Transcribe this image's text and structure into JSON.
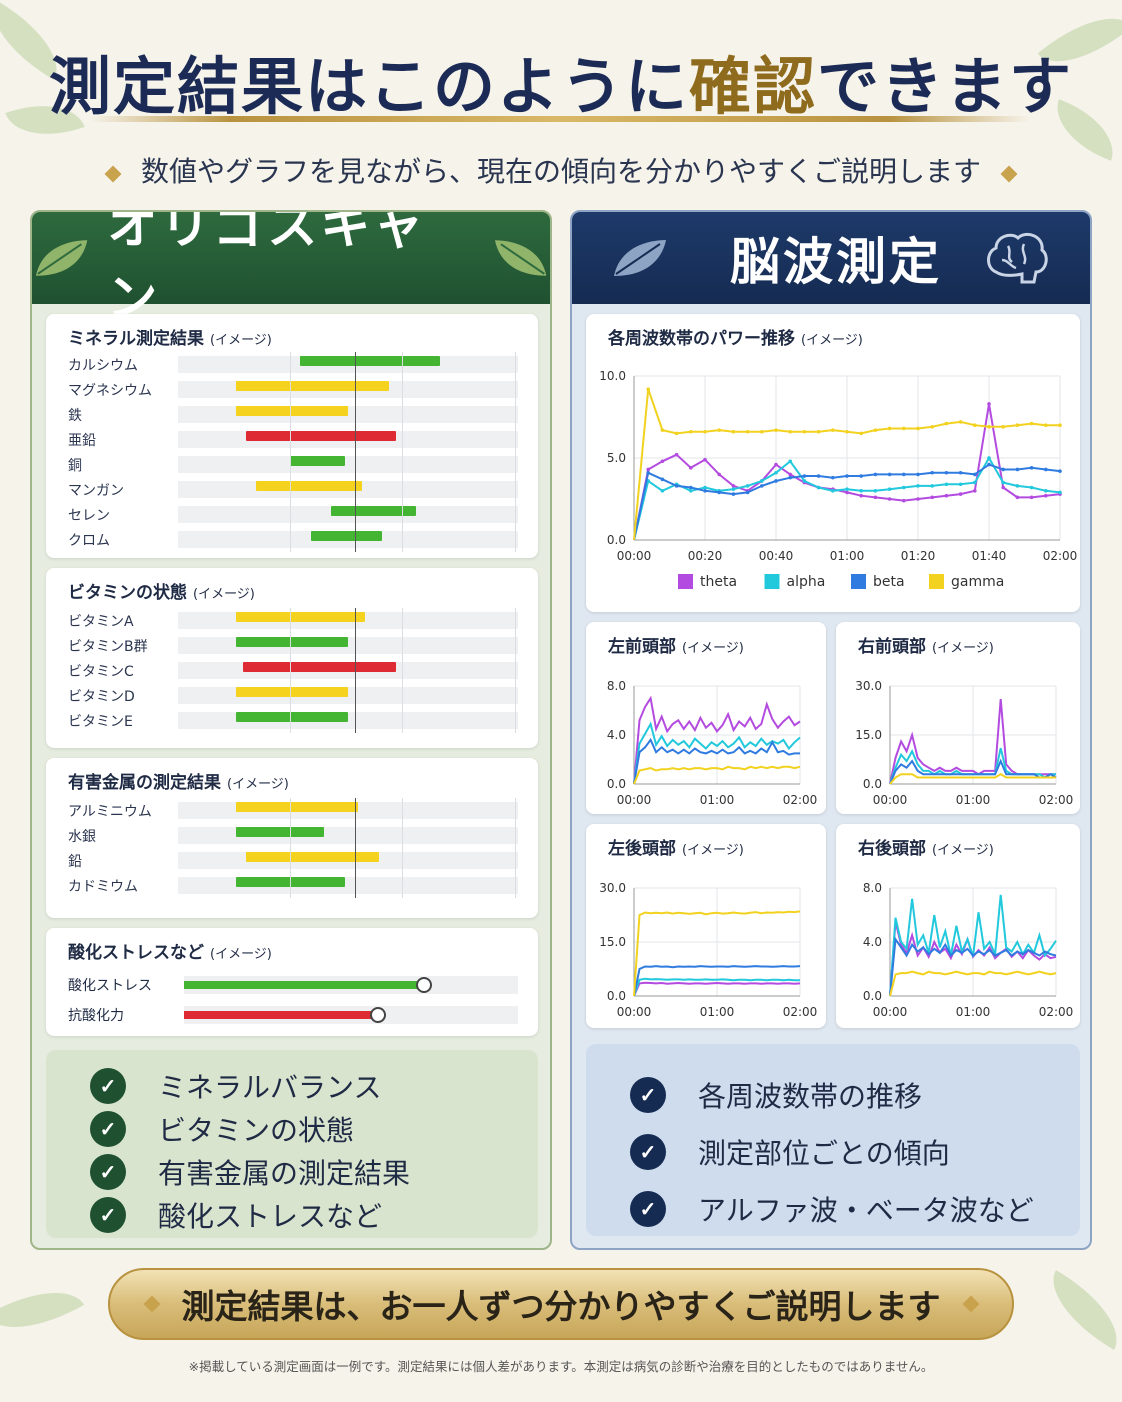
{
  "header": {
    "title_a": "測定結果はこのように",
    "title_hl": "確認",
    "title_b": "できます",
    "subtitle": "数値やグラフを見ながら、現在の傾向を分かりやすくご説明します"
  },
  "colors": {
    "green": "#44b533",
    "yellow": "#f4d21d",
    "red": "#dd2a33",
    "theta": "#b44be0",
    "alpha": "#22c8dc",
    "beta": "#2f7be0",
    "gamma": "#f2d21e"
  },
  "left_panel": {
    "title": "オリゴスキャン",
    "icon": "leaf-icon",
    "minerals": {
      "title": "ミネラル測定結果",
      "suffix": "(イメージ)",
      "items": [
        {
          "label": "カルシウム",
          "start": 0.36,
          "end": 0.77,
          "color": "green"
        },
        {
          "label": "マグネシウム",
          "start": 0.17,
          "end": 0.62,
          "color": "yellow"
        },
        {
          "label": "鉄",
          "start": 0.17,
          "end": 0.5,
          "color": "yellow"
        },
        {
          "label": "亜鉛",
          "start": 0.2,
          "end": 0.64,
          "color": "red"
        },
        {
          "label": "銅",
          "start": 0.33,
          "end": 0.49,
          "color": "green"
        },
        {
          "label": "マンガン",
          "start": 0.23,
          "end": 0.54,
          "color": "yellow"
        },
        {
          "label": "セレン",
          "start": 0.45,
          "end": 0.7,
          "color": "green"
        },
        {
          "label": "クロム",
          "start": 0.39,
          "end": 0.6,
          "color": "green"
        }
      ]
    },
    "vitamins": {
      "title": "ビタミンの状態",
      "suffix": "(イメージ)",
      "items": [
        {
          "label": "ビタミンA",
          "start": 0.17,
          "end": 0.55,
          "color": "yellow"
        },
        {
          "label": "ビタミンB群",
          "start": 0.17,
          "end": 0.5,
          "color": "green"
        },
        {
          "label": "ビタミンC",
          "start": 0.19,
          "end": 0.64,
          "color": "red"
        },
        {
          "label": "ビタミンD",
          "start": 0.17,
          "end": 0.5,
          "color": "yellow"
        },
        {
          "label": "ビタミンE",
          "start": 0.17,
          "end": 0.5,
          "color": "green"
        }
      ]
    },
    "metals": {
      "title": "有害金属の測定結果",
      "suffix": "(イメージ)",
      "items": [
        {
          "label": "アルミニウム",
          "start": 0.17,
          "end": 0.53,
          "color": "yellow"
        },
        {
          "label": "水銀",
          "start": 0.17,
          "end": 0.43,
          "color": "green"
        },
        {
          "label": "鉛",
          "start": 0.2,
          "end": 0.59,
          "color": "yellow"
        },
        {
          "label": "カドミウム",
          "start": 0.17,
          "end": 0.49,
          "color": "green"
        }
      ]
    },
    "stress": {
      "title": "酸化ストレスなど",
      "suffix": "(イメージ)",
      "items": [
        {
          "label": "酸化ストレス",
          "value": 0.72,
          "color": "green"
        },
        {
          "label": "抗酸化力",
          "value": 0.58,
          "color": "red"
        }
      ]
    },
    "checks": [
      "ミネラルバランス",
      "ビタミンの状態",
      "有害金属の測定結果",
      "酸化ストレスなど"
    ]
  },
  "right_panel": {
    "title": "脳波測定",
    "icon": "brain-icon",
    "checks": [
      "各周波数帯の推移",
      "測定部位ごとの傾向",
      "アルファ波・ベータ波など"
    ]
  },
  "chart_data": [
    {
      "type": "line",
      "title": "各周波数帯のパワー推移",
      "suffix": "(イメージ)",
      "x": [
        "00:00",
        "00:04",
        "00:08",
        "00:12",
        "00:16",
        "00:20",
        "00:24",
        "00:28",
        "00:32",
        "00:36",
        "00:40",
        "00:44",
        "00:48",
        "00:52",
        "00:56",
        "01:00",
        "01:04",
        "01:08",
        "01:12",
        "01:16",
        "01:20",
        "01:24",
        "01:28",
        "01:32",
        "01:36",
        "01:40",
        "01:44",
        "01:48",
        "01:52",
        "01:56",
        "02:00"
      ],
      "xticks": [
        "00:00",
        "00:20",
        "00:40",
        "01:00",
        "01:20",
        "01:40",
        "02:00"
      ],
      "yticks": [
        "0.0",
        "5.0",
        "10.0"
      ],
      "ylim": [
        0,
        10
      ],
      "legend": [
        "theta",
        "alpha",
        "beta",
        "gamma"
      ],
      "series": [
        {
          "name": "theta",
          "values": [
            0,
            4.3,
            4.8,
            5.2,
            4.4,
            4.9,
            4.0,
            3.3,
            3.0,
            3.6,
            4.6,
            4.0,
            3.5,
            3.2,
            3.1,
            2.9,
            2.7,
            2.6,
            2.5,
            2.4,
            2.5,
            2.6,
            2.7,
            2.8,
            3.0,
            8.3,
            3.2,
            2.6,
            2.6,
            2.7,
            2.8
          ]
        },
        {
          "name": "alpha",
          "values": [
            0,
            3.6,
            3.0,
            3.4,
            3.0,
            3.2,
            3.0,
            3.1,
            3.3,
            3.6,
            4.1,
            4.8,
            3.6,
            3.2,
            3.0,
            3.1,
            3.0,
            3.0,
            3.1,
            3.2,
            3.3,
            3.3,
            3.4,
            3.4,
            3.5,
            5.0,
            3.5,
            3.3,
            3.2,
            3.0,
            2.9
          ]
        },
        {
          "name": "beta",
          "values": [
            0,
            4.1,
            3.7,
            3.3,
            3.2,
            3.0,
            2.9,
            2.8,
            2.9,
            3.3,
            3.6,
            3.8,
            3.9,
            3.9,
            3.8,
            3.9,
            3.9,
            4.0,
            4.0,
            4.0,
            4.0,
            4.1,
            4.1,
            4.1,
            4.0,
            4.6,
            4.3,
            4.3,
            4.4,
            4.3,
            4.2
          ]
        },
        {
          "name": "gamma",
          "values": [
            0,
            9.2,
            6.7,
            6.5,
            6.6,
            6.6,
            6.7,
            6.6,
            6.6,
            6.6,
            6.7,
            6.6,
            6.6,
            6.6,
            6.7,
            6.6,
            6.5,
            6.7,
            6.8,
            6.8,
            6.8,
            6.9,
            7.1,
            7.2,
            7.0,
            6.9,
            6.9,
            7.0,
            7.1,
            7.0,
            7.0
          ]
        }
      ]
    },
    {
      "type": "line",
      "title": "左前頭部",
      "suffix": "(イメージ)",
      "xticks": [
        "00:00",
        "01:00",
        "02:00"
      ],
      "yticks": [
        "0.0",
        "4.0",
        "8.0"
      ],
      "ylim": [
        0,
        8
      ],
      "series": [
        {
          "name": "theta",
          "values": [
            0,
            5.2,
            6.3,
            7.0,
            4.5,
            5.5,
            4.3,
            4.9,
            5.2,
            4.5,
            5.1,
            4.4,
            5.4,
            4.6,
            5.0,
            4.3,
            4.8,
            5.7,
            4.4,
            5.1,
            4.7,
            5.4,
            4.5,
            4.9,
            6.5,
            5.3,
            4.6,
            5.1,
            5.5,
            4.8,
            5.1
          ]
        },
        {
          "name": "alpha",
          "values": [
            0,
            3.3,
            4.1,
            4.9,
            3.2,
            3.9,
            3.1,
            3.6,
            3.2,
            3.5,
            3.0,
            3.7,
            3.3,
            2.9,
            3.4,
            3.1,
            3.5,
            3.0,
            3.3,
            3.8,
            3.0,
            3.4,
            3.1,
            3.7,
            3.2,
            3.5,
            3.3,
            3.6,
            2.9,
            3.4,
            3.8
          ]
        },
        {
          "name": "beta",
          "values": [
            0,
            2.6,
            3.0,
            3.6,
            2.6,
            3.0,
            2.6,
            2.8,
            2.5,
            2.8,
            2.5,
            2.9,
            2.6,
            2.5,
            2.7,
            2.5,
            2.8,
            2.5,
            2.6,
            3.0,
            2.5,
            2.7,
            2.5,
            2.9,
            2.6,
            3.4,
            2.6,
            2.7,
            2.4,
            2.5,
            2.5
          ]
        },
        {
          "name": "gamma",
          "values": [
            0,
            1.1,
            1.2,
            1.3,
            1.1,
            1.2,
            1.2,
            1.3,
            1.2,
            1.3,
            1.2,
            1.3,
            1.3,
            1.2,
            1.3,
            1.3,
            1.2,
            1.4,
            1.3,
            1.3,
            1.2,
            1.4,
            1.3,
            1.4,
            1.3,
            1.4,
            1.3,
            1.4,
            1.4,
            1.3,
            1.4
          ]
        }
      ]
    },
    {
      "type": "line",
      "title": "右前頭部",
      "suffix": "(イメージ)",
      "xticks": [
        "00:00",
        "01:00",
        "02:00"
      ],
      "yticks": [
        "0.0",
        "15.0",
        "30.0"
      ],
      "ylim": [
        0,
        30
      ],
      "series": [
        {
          "name": "theta",
          "values": [
            0,
            8,
            13,
            10,
            15,
            8,
            6,
            5,
            4,
            5,
            4,
            4,
            5,
            4,
            4,
            4,
            3,
            4,
            4,
            4,
            26,
            6,
            4,
            3,
            3,
            3,
            3,
            3,
            3,
            3,
            3
          ]
        },
        {
          "name": "alpha",
          "values": [
            0,
            5,
            9,
            7,
            10,
            6,
            4,
            4,
            3,
            4,
            3,
            3,
            4,
            3,
            3,
            3,
            3,
            3,
            3,
            3,
            11,
            4,
            3,
            3,
            3,
            3,
            3,
            3,
            2,
            3,
            3
          ]
        },
        {
          "name": "beta",
          "values": [
            0,
            4,
            6,
            5,
            7,
            4,
            3,
            3,
            3,
            3,
            3,
            3,
            3,
            3,
            3,
            3,
            3,
            3,
            3,
            3,
            7,
            3,
            3,
            3,
            3,
            3,
            3,
            2,
            2,
            3,
            2
          ]
        },
        {
          "name": "gamma",
          "values": [
            0,
            2,
            3,
            3,
            3,
            2,
            2,
            2,
            2,
            2,
            2,
            2,
            2,
            2,
            2,
            2,
            2,
            2,
            2,
            2,
            3,
            2,
            2,
            2,
            2,
            2,
            2,
            2,
            2,
            2,
            2
          ]
        }
      ]
    },
    {
      "type": "line",
      "title": "左後頭部",
      "suffix": "(イメージ)",
      "xticks": [
        "00:00",
        "01:00",
        "02:00"
      ],
      "yticks": [
        "0.0",
        "15.0",
        "30.0"
      ],
      "ylim": [
        0,
        30
      ],
      "series": [
        {
          "name": "theta",
          "values": [
            0,
            3.5,
            3.7,
            3.6,
            3.5,
            3.6,
            3.4,
            3.5,
            3.6,
            3.5,
            3.4,
            3.5,
            3.5,
            3.4,
            3.5,
            3.6,
            3.5,
            3.4,
            3.5,
            3.5,
            3.4,
            3.5,
            3.5,
            3.4,
            3.5,
            3.5,
            3.4,
            3.5,
            3.5,
            3.4,
            3.5
          ]
        },
        {
          "name": "alpha",
          "values": [
            0,
            4.5,
            4.8,
            4.6,
            4.7,
            4.6,
            4.5,
            4.6,
            4.6,
            4.5,
            4.6,
            4.5,
            4.5,
            4.6,
            4.5,
            4.5,
            4.6,
            4.5,
            4.4,
            4.5,
            4.5,
            4.4,
            4.5,
            4.5,
            4.4,
            4.5,
            4.5,
            4.4,
            4.5,
            4.4,
            4.4
          ]
        },
        {
          "name": "beta",
          "values": [
            0,
            7.5,
            8.2,
            8.1,
            8.3,
            8.1,
            8.2,
            8.0,
            8.2,
            8.1,
            8.2,
            8.1,
            8.3,
            8.2,
            8.1,
            8.2,
            8.2,
            8.1,
            8.3,
            8.2,
            8.1,
            8.2,
            8.3,
            8.2,
            8.2,
            8.1,
            8.2,
            8.3,
            8.2,
            8.2,
            8.3
          ]
        },
        {
          "name": "gamma",
          "values": [
            0,
            22.5,
            23.2,
            23.0,
            23.1,
            23.0,
            23.2,
            22.9,
            23.1,
            23.0,
            22.8,
            23.0,
            23.1,
            22.7,
            23.0,
            23.1,
            22.9,
            23.0,
            23.2,
            23.0,
            22.9,
            23.1,
            23.3,
            23.0,
            23.2,
            23.1,
            23.3,
            23.2,
            23.4,
            23.3,
            23.5
          ]
        }
      ]
    },
    {
      "type": "line",
      "title": "右後頭部",
      "suffix": "(イメージ)",
      "xticks": [
        "00:00",
        "01:00",
        "02:00"
      ],
      "yticks": [
        "0.0",
        "4.0",
        "8.0"
      ],
      "ylim": [
        0,
        8
      ],
      "series": [
        {
          "name": "theta",
          "values": [
            0,
            5.5,
            3.8,
            3.2,
            4.5,
            3.0,
            3.6,
            2.9,
            4.0,
            3.2,
            3.5,
            2.8,
            3.8,
            3.1,
            4.2,
            2.9,
            3.4,
            3.0,
            3.6,
            2.8,
            3.2,
            3.5,
            2.9,
            3.3,
            2.8,
            3.4,
            3.0,
            2.7,
            3.1,
            2.8,
            2.9
          ]
        },
        {
          "name": "alpha",
          "values": [
            0,
            5.8,
            4.0,
            3.5,
            7.2,
            3.8,
            4.5,
            3.2,
            6.0,
            3.6,
            4.8,
            3.0,
            5.2,
            3.3,
            4.2,
            2.9,
            6.2,
            3.5,
            4.0,
            3.1,
            7.5,
            3.6,
            3.3,
            4.0,
            3.1,
            3.8,
            3.2,
            4.5,
            3.0,
            3.5,
            4.1
          ]
        },
        {
          "name": "beta",
          "values": [
            0,
            4.2,
            3.6,
            3.0,
            3.8,
            3.3,
            3.6,
            3.1,
            3.5,
            3.2,
            3.8,
            3.0,
            3.4,
            3.2,
            3.5,
            3.0,
            3.3,
            3.1,
            3.4,
            3.0,
            3.2,
            3.4,
            3.0,
            3.3,
            3.1,
            3.4,
            3.2,
            3.0,
            3.3,
            3.1,
            3.0
          ]
        },
        {
          "name": "gamma",
          "values": [
            0,
            1.6,
            1.7,
            1.7,
            1.8,
            1.7,
            1.6,
            1.8,
            1.7,
            1.7,
            1.6,
            1.7,
            1.8,
            1.7,
            1.6,
            1.7,
            1.7,
            1.6,
            1.8,
            1.7,
            1.7,
            1.6,
            1.7,
            1.8,
            1.7,
            1.6,
            1.7,
            1.8,
            1.7,
            1.6,
            1.7
          ]
        }
      ]
    }
  ],
  "footer": {
    "banner": "測定結果は、お一人ずつ分かりやすくご説明します",
    "note": "※掲載している測定画面は一例です。測定結果には個人差があります。本測定は病気の診断や治療を目的としたものではありません。"
  }
}
